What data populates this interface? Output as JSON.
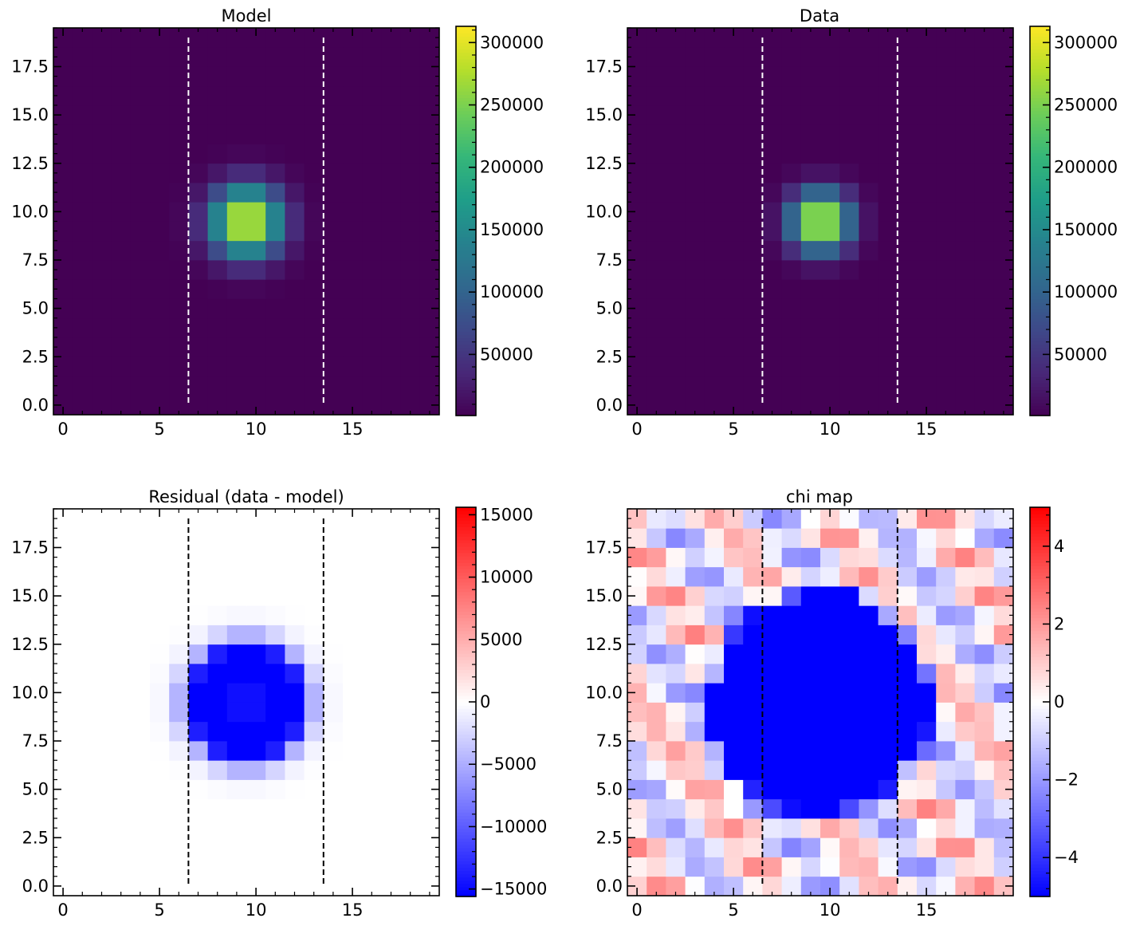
{
  "chart_data": [
    {
      "type": "heatmap",
      "title": "Model",
      "cmap": "viridis",
      "model": "gaussian",
      "peak": 310000,
      "center": [
        9.5,
        9.5
      ],
      "sigma": 1.25,
      "vlim": [
        1000,
        313000
      ],
      "xlim": [
        -0.5,
        19.5
      ],
      "ylim": [
        -0.5,
        19.5
      ],
      "xticks": [
        0,
        5,
        10,
        15
      ],
      "xtick_labels": [
        "0",
        "5",
        "10",
        "15"
      ],
      "yticks": [
        0.0,
        2.5,
        5.0,
        7.5,
        10.0,
        12.5,
        15.0,
        17.5
      ],
      "ytick_labels": [
        "0.0",
        "2.5",
        "5.0",
        "7.5",
        "10.0",
        "12.5",
        "15.0",
        "17.5"
      ],
      "vlines": [
        6.5,
        13.5
      ],
      "vline_color": "#ffffff",
      "colorbar_ticks": [
        50000,
        100000,
        150000,
        200000,
        250000,
        300000
      ],
      "colorbar_labels": [
        "50000",
        "100000",
        "150000",
        "200000",
        "250000",
        "300000"
      ]
    },
    {
      "type": "heatmap",
      "title": "Data",
      "cmap": "viridis",
      "model": "gaussian",
      "peak": 313000,
      "center": [
        9.5,
        9.5
      ],
      "sigma": 1.05,
      "vlim": [
        1000,
        313000
      ],
      "xlim": [
        -0.5,
        19.5
      ],
      "ylim": [
        -0.5,
        19.5
      ],
      "xticks": [
        0,
        5,
        10,
        15
      ],
      "xtick_labels": [
        "0",
        "5",
        "10",
        "15"
      ],
      "yticks": [
        0.0,
        2.5,
        5.0,
        7.5,
        10.0,
        12.5,
        15.0,
        17.5
      ],
      "ytick_labels": [
        "0.0",
        "2.5",
        "5.0",
        "7.5",
        "10.0",
        "12.5",
        "15.0",
        "17.5"
      ],
      "vlines": [
        6.5,
        13.5
      ],
      "vline_color": "#ffffff",
      "colorbar_ticks": [
        50000,
        100000,
        150000,
        200000,
        250000,
        300000
      ],
      "colorbar_labels": [
        "50000",
        "100000",
        "150000",
        "200000",
        "250000",
        "300000"
      ]
    },
    {
      "type": "heatmap",
      "title": "Residual (data - model)",
      "cmap": "bwr",
      "model": "difference",
      "vlim": [
        -15600,
        15600
      ],
      "xlim": [
        -0.5,
        19.5
      ],
      "ylim": [
        -0.5,
        19.5
      ],
      "xticks": [
        0,
        5,
        10,
        15
      ],
      "xtick_labels": [
        "0",
        "5",
        "10",
        "15"
      ],
      "yticks": [
        0.0,
        2.5,
        5.0,
        7.5,
        10.0,
        12.5,
        15.0,
        17.5
      ],
      "ytick_labels": [
        "0.0",
        "2.5",
        "5.0",
        "7.5",
        "10.0",
        "12.5",
        "15.0",
        "17.5"
      ],
      "vlines": [
        6.5,
        13.5
      ],
      "vline_color": "#000000",
      "colorbar_ticks": [
        -15000,
        -10000,
        -5000,
        0,
        5000,
        10000,
        15000
      ],
      "colorbar_labels": [
        "−15000",
        "−10000",
        "−5000",
        "0",
        "5000",
        "10000",
        "15000"
      ]
    },
    {
      "type": "heatmap",
      "title": "chi map",
      "cmap": "bwr",
      "model": "chi",
      "vlim": [
        -5,
        5
      ],
      "xlim": [
        -0.5,
        19.5
      ],
      "ylim": [
        -0.5,
        19.5
      ],
      "xticks": [
        0,
        5,
        10,
        15
      ],
      "xtick_labels": [
        "0",
        "5",
        "10",
        "15"
      ],
      "yticks": [
        0.0,
        2.5,
        5.0,
        7.5,
        10.0,
        12.5,
        15.0,
        17.5
      ],
      "ytick_labels": [
        "0.0",
        "2.5",
        "5.0",
        "7.5",
        "10.0",
        "12.5",
        "15.0",
        "17.5"
      ],
      "vlines": [
        6.5,
        13.5
      ],
      "vline_color": "#000000",
      "colorbar_ticks": [
        -4,
        -2,
        0,
        2,
        4
      ],
      "colorbar_labels": [
        "−4",
        "−2",
        "0",
        "2",
        "4"
      ]
    }
  ]
}
